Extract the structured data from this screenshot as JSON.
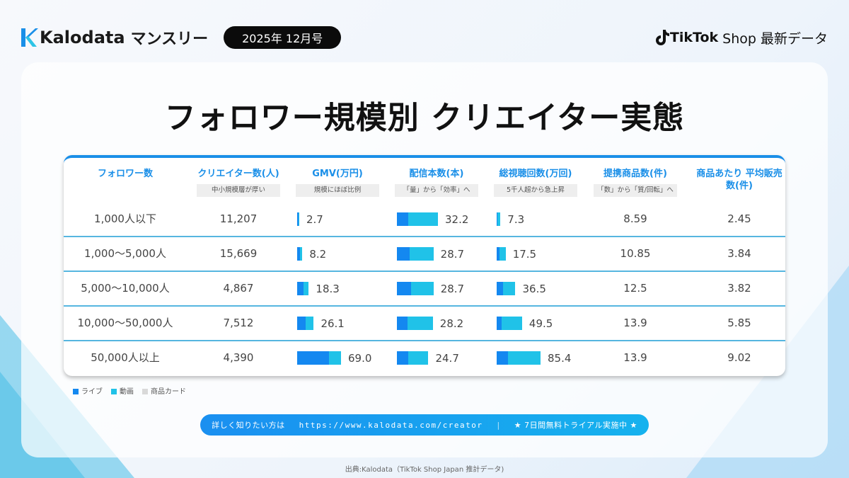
{
  "header": {
    "brand": "Kalodata",
    "monthly": "マンスリー",
    "issue": "2025年 12月号",
    "tiktok_brand": "TikTok",
    "tiktok_shop": "Shop 最新データ"
  },
  "title": "フォロワー規模別 クリエイター実態",
  "colors": {
    "accent": "#1a8fe8",
    "live": "#1488f0",
    "video": "#20c2e8",
    "product_card": "#d9d9d9"
  },
  "chart_data": {
    "type": "table",
    "columns": [
      {
        "label": "フォロワー数",
        "note": ""
      },
      {
        "label": "クリエイター数(人)",
        "note": "中小規模層が厚い"
      },
      {
        "label": "GMV(万円)",
        "note": "規模にほぼ比例"
      },
      {
        "label": "配信本数(本)",
        "note": "「量」から「効率」へ"
      },
      {
        "label": "総視聴回数(万回)",
        "note": "5千人超から急上昇"
      },
      {
        "label": "提携商品数(件)",
        "note": "「数」から「質/回転」へ"
      },
      {
        "label": "商品あたり 平均販売数(件)",
        "note": ""
      }
    ],
    "rows": [
      {
        "followers": "1,000人以下",
        "creators": "11,207",
        "gmv": "2.7",
        "streams": "32.2",
        "views": "7.3",
        "products": "8.59",
        "avg_sales": "2.45",
        "gmv_live_share": 0.5,
        "streams_live_share": 0.28,
        "views_live_share": 0.2
      },
      {
        "followers": "1,000～5,000人",
        "creators": "15,669",
        "gmv": "8.2",
        "streams": "28.7",
        "views": "17.5",
        "products": "10.85",
        "avg_sales": "3.84",
        "gmv_live_share": 0.5,
        "streams_live_share": 0.34,
        "views_live_share": 0.3
      },
      {
        "followers": "5,000～10,000人",
        "creators": "4,867",
        "gmv": "18.3",
        "streams": "28.7",
        "views": "36.5",
        "products": "12.5",
        "avg_sales": "3.82",
        "gmv_live_share": 0.55,
        "streams_live_share": 0.38,
        "views_live_share": 0.33
      },
      {
        "followers": "10,000～50,000人",
        "creators": "7,512",
        "gmv": "26.1",
        "streams": "28.2",
        "views": "49.5",
        "products": "13.9",
        "avg_sales": "5.85",
        "gmv_live_share": 0.5,
        "streams_live_share": 0.3,
        "views_live_share": 0.19
      },
      {
        "followers": "50,000人以上",
        "creators": "4,390",
        "gmv": "69.0",
        "streams": "24.7",
        "views": "85.4",
        "products": "13.9",
        "avg_sales": "9.02",
        "gmv_live_share": 0.73,
        "streams_live_share": 0.35,
        "views_live_share": 0.25
      }
    ],
    "legend": [
      "ライブ",
      "動画",
      "商品カード"
    ]
  },
  "cta": {
    "lead": "詳しく知りたい方は",
    "url": "https://www.kalodata.com/creator",
    "sep": "|",
    "trial": "★ 7日間無料トライアル実施中 ★"
  },
  "footer": "出典:Kalodata（TikTok Shop Japan 推計データ)"
}
